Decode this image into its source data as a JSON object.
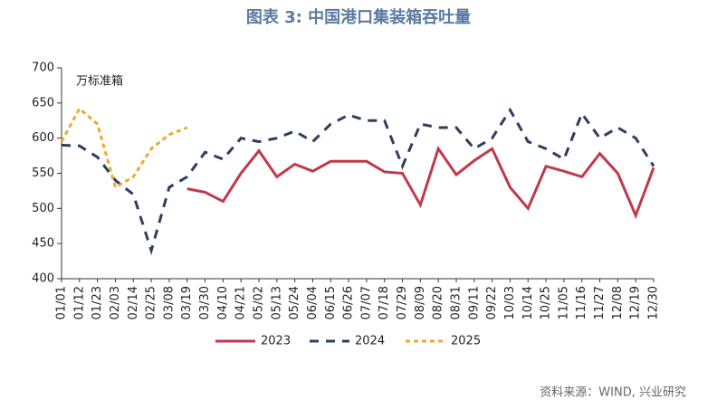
{
  "chart_data": {
    "type": "line",
    "title": "图表 3:  中国港口集装箱吞吐量",
    "y_label": "万标准箱",
    "source": "资料来源：WIND, 兴业研究",
    "categories": [
      "01/01",
      "01/12",
      "01/23",
      "02/03",
      "02/14",
      "02/25",
      "03/08",
      "03/19",
      "03/30",
      "04/10",
      "04/21",
      "05/02",
      "05/13",
      "05/24",
      "06/04",
      "06/15",
      "06/26",
      "07/07",
      "07/18",
      "07/29",
      "08/09",
      "08/20",
      "08/31",
      "09/11",
      "09/22",
      "10/03",
      "10/14",
      "10/25",
      "11/05",
      "11/16",
      "11/27",
      "12/08",
      "12/19",
      "12/30"
    ],
    "series": [
      {
        "name": "2023",
        "color": "#c0394b",
        "dash": "none",
        "values": [
          null,
          null,
          null,
          null,
          null,
          null,
          null,
          528,
          523,
          510,
          550,
          582,
          545,
          563,
          553,
          567,
          567,
          567,
          552,
          550,
          505,
          585,
          548,
          568,
          585,
          530,
          500,
          560,
          553,
          545,
          578,
          550,
          490,
          558
        ]
      },
      {
        "name": "2024",
        "color": "#2e3f5c",
        "dash": "10,8",
        "values": [
          590,
          589,
          573,
          540,
          520,
          440,
          530,
          545,
          580,
          570,
          600,
          595,
          600,
          610,
          595,
          620,
          633,
          625,
          625,
          560,
          620,
          615,
          615,
          585,
          600,
          640,
          595,
          585,
          570,
          635,
          600,
          615,
          600,
          560
        ]
      },
      {
        "name": "2025",
        "color": "#f0a830",
        "dash": "5,4",
        "values": [
          595,
          642,
          620,
          530,
          545,
          585,
          605,
          615,
          null,
          null,
          null,
          null,
          null,
          null,
          null,
          null,
          null,
          null,
          null,
          null,
          null,
          null,
          null,
          null,
          null,
          null,
          null,
          null,
          null,
          null,
          null,
          null,
          null,
          null
        ]
      }
    ],
    "ylim": [
      400,
      700
    ],
    "yticks": [
      400,
      450,
      500,
      550,
      600,
      650,
      700
    ]
  }
}
